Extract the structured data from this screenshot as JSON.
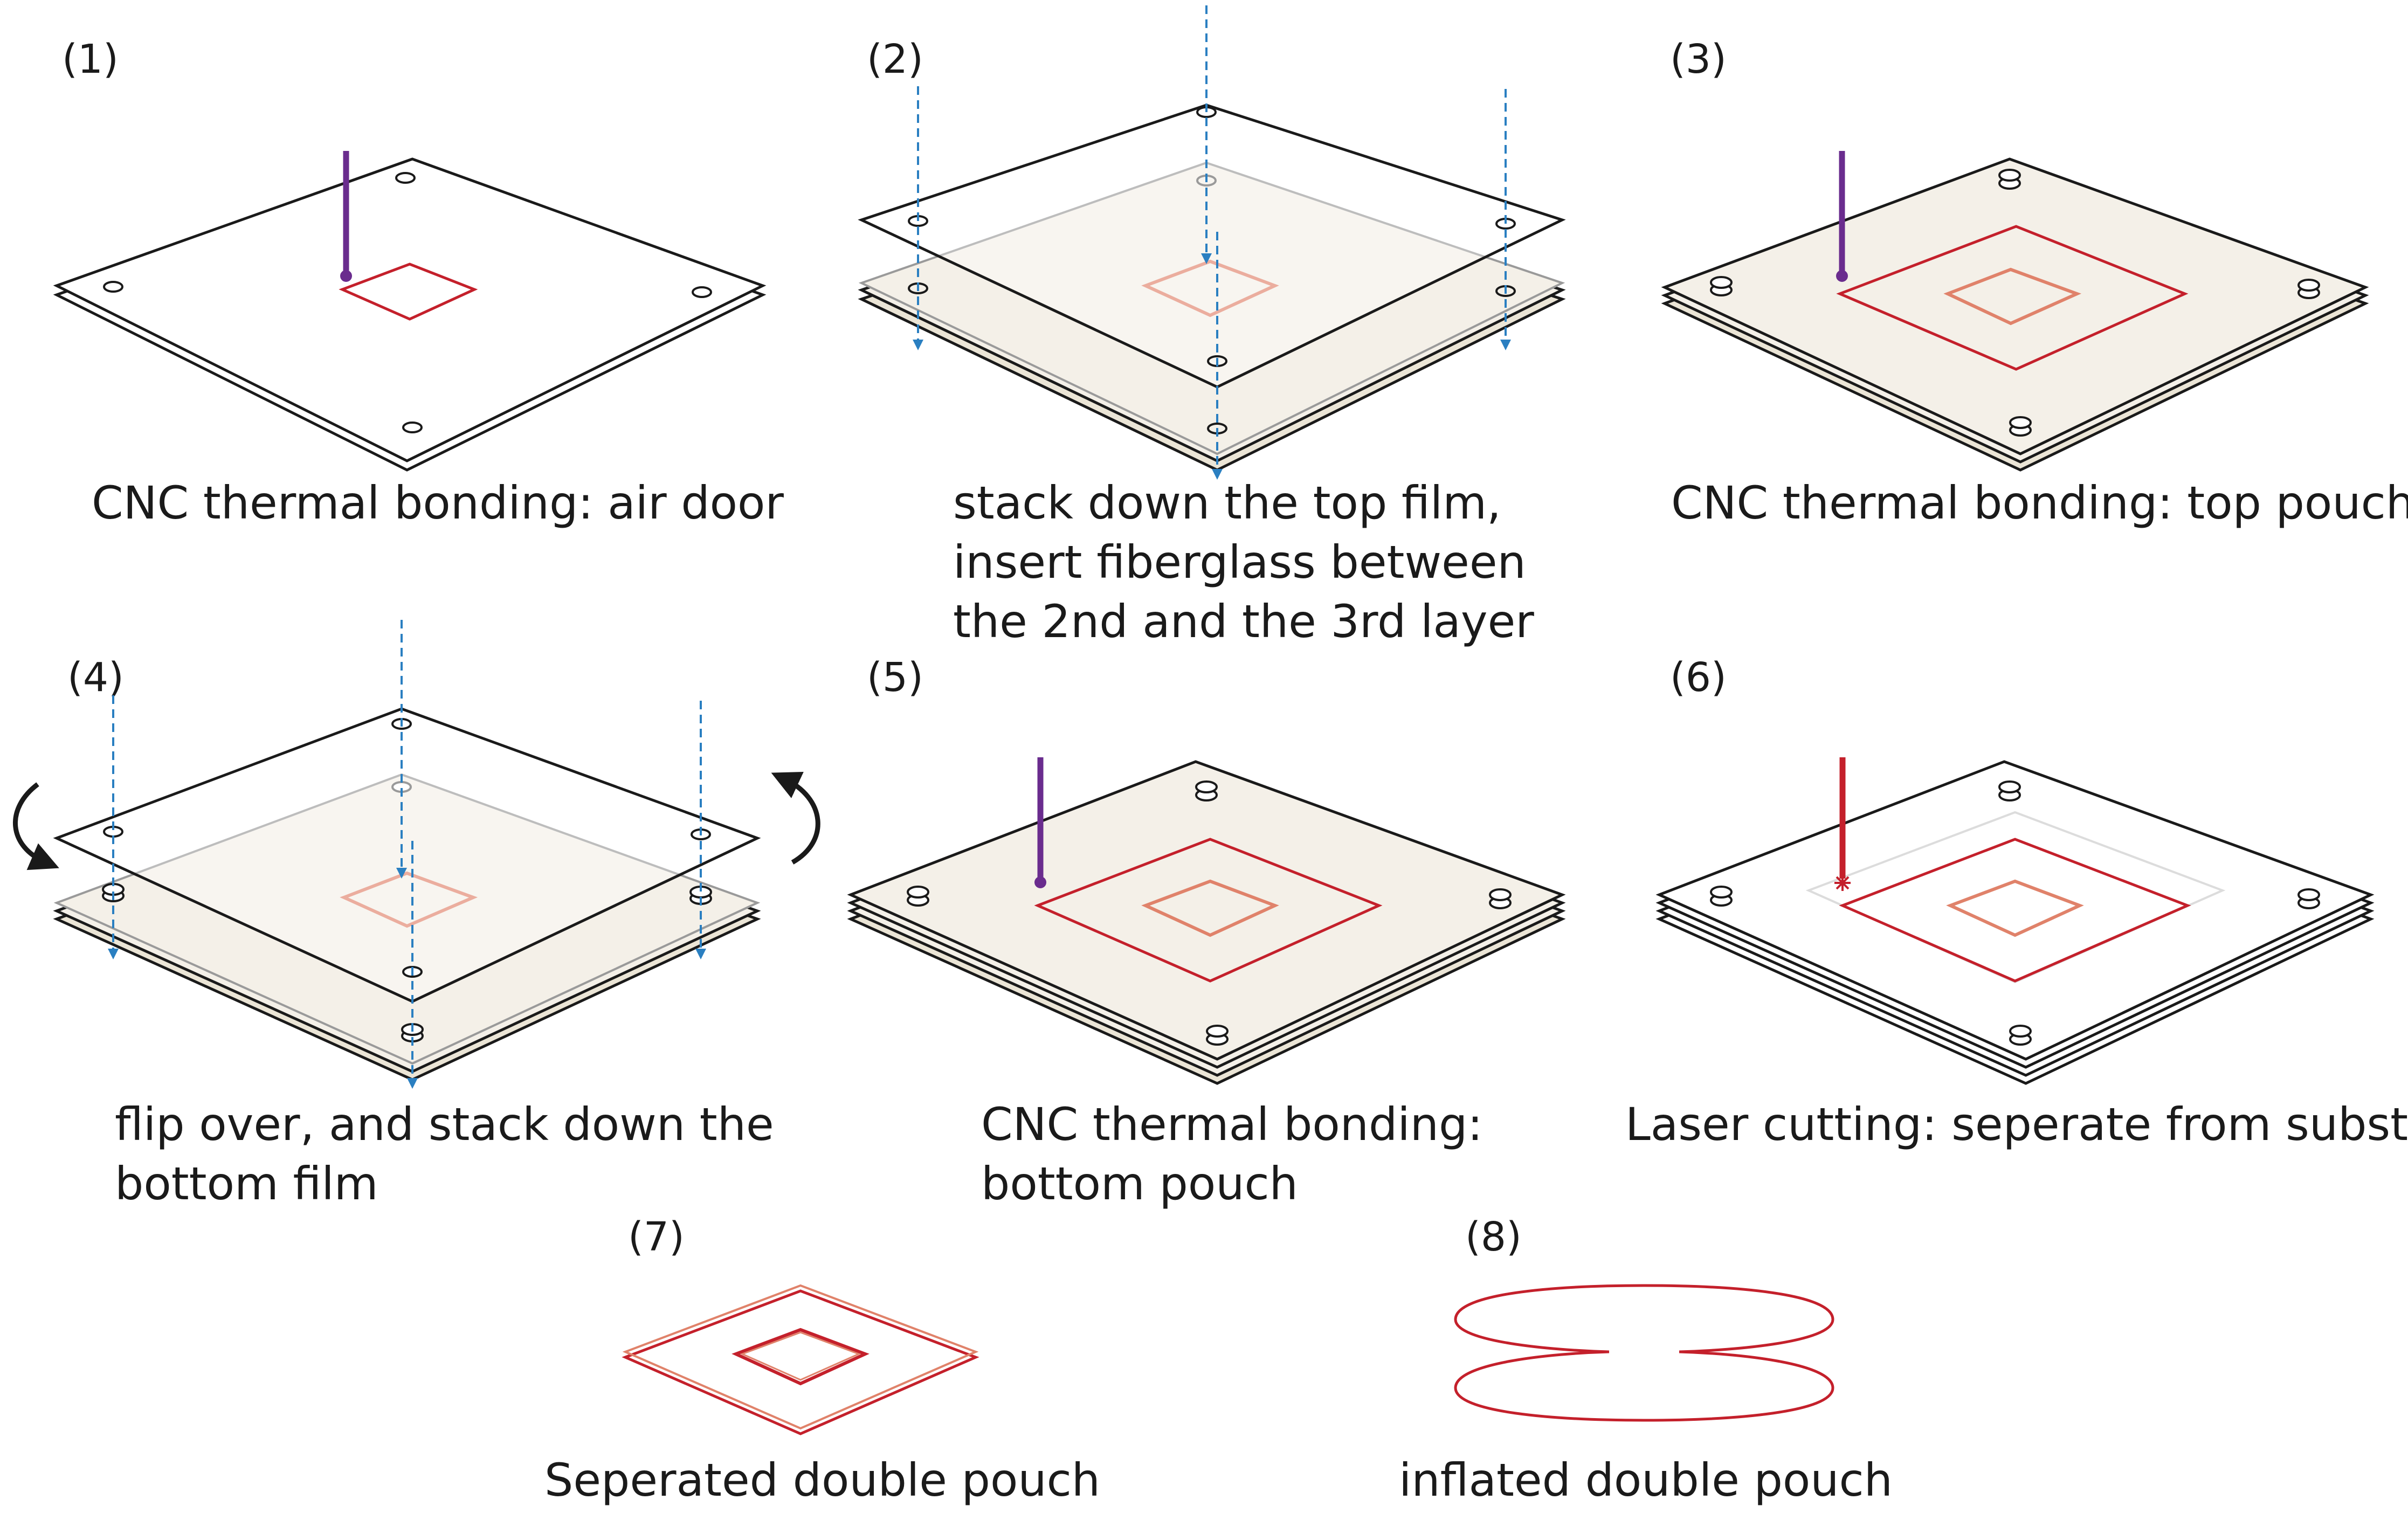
{
  "steps": [
    {
      "number": "(1)",
      "caption": [
        "CNC thermal bonding: air door"
      ]
    },
    {
      "number": "(2)",
      "caption": [
        "stack down the top film,",
        "insert fiberglass between",
        "the 2nd and the 3rd layer"
      ]
    },
    {
      "number": "(3)",
      "caption": [
        "CNC thermal bonding: top pouch"
      ]
    },
    {
      "number": "(4)",
      "caption": [
        "flip over, and stack down the",
        "bottom film"
      ]
    },
    {
      "number": "(5)",
      "caption": [
        "CNC thermal bonding:",
        "bottom pouch"
      ]
    },
    {
      "number": "(6)",
      "caption": [
        "Laser cutting: seperate from substrate"
      ]
    },
    {
      "number": "(7)",
      "caption": [
        "Seperated double pouch"
      ]
    },
    {
      "number": "(8)",
      "caption": [
        "inflated double pouch"
      ]
    }
  ],
  "colors": {
    "outline": "#1a1a1a",
    "film_fill": "#f4f0e8",
    "film_edge": "#d9d2c3",
    "bond_red": "#c4202b",
    "door_salmon": "#e0826a",
    "guide_blue": "#2a7fc1",
    "tool_purple": "#6a2c8e",
    "laser_red": "#c4202b"
  },
  "icons": [
    "cnc-tool-icon",
    "laser-beam-icon",
    "rotate-arrow-icon",
    "alignment-guide-line",
    "peg-hole-icon"
  ]
}
